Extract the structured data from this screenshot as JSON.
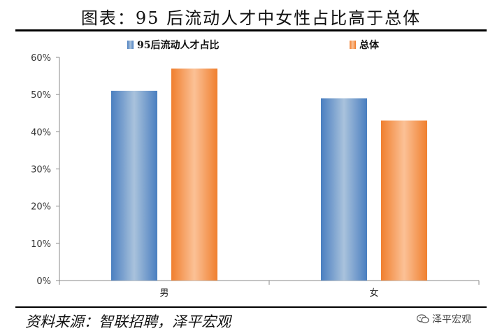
{
  "header": {
    "title": "图表：95 后流动人才中女性占比高于总体"
  },
  "footer": {
    "source": "资料来源：智联招聘，泽平宏观",
    "watermark": "泽平宏观",
    "watermark_icon": "wechat-icon"
  },
  "colors": {
    "series_95": "#4a7fc0",
    "series_95_light": "#a9c2dc",
    "series_total": "#f07f2e",
    "series_total_light": "#fbc196",
    "axis": "#888888"
  },
  "chart_data": {
    "type": "bar",
    "categories": [
      "男",
      "女"
    ],
    "series": [
      {
        "name": "95后流动人才占比",
        "values": [
          51,
          49
        ]
      },
      {
        "name": "总体",
        "values": [
          57,
          43
        ]
      }
    ],
    "ylim": [
      0,
      60
    ],
    "yticks": [
      0,
      10,
      20,
      30,
      40,
      50,
      60
    ],
    "ytick_labels": [
      "0%",
      "10%",
      "20%",
      "30%",
      "40%",
      "50%",
      "60%"
    ],
    "xlabel": "",
    "ylabel": "",
    "legend_position": "top",
    "grid": false
  }
}
